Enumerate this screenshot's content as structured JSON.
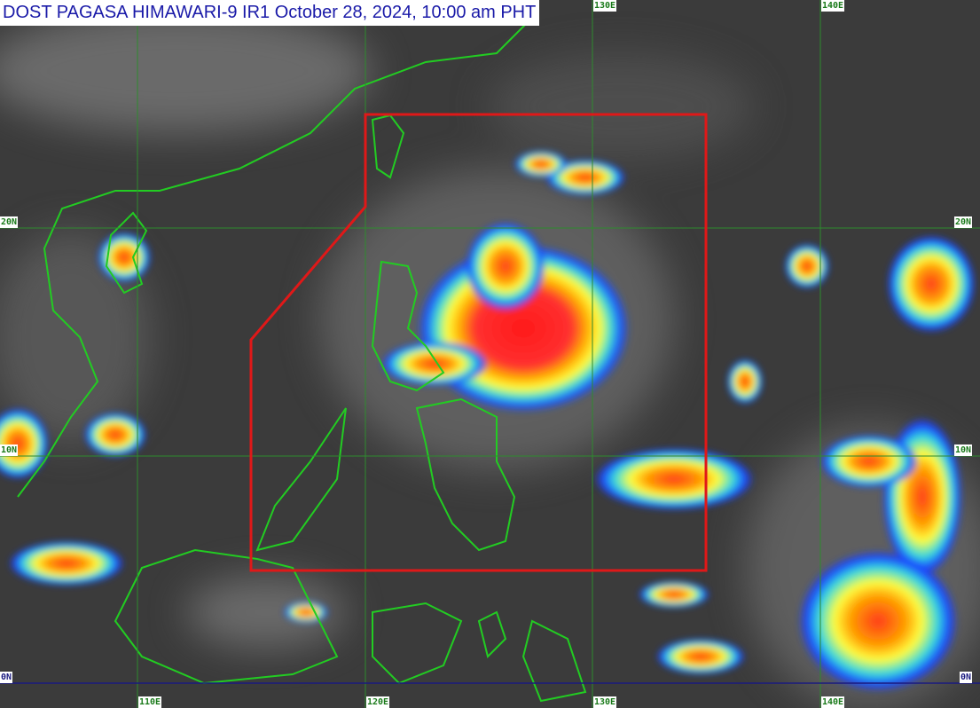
{
  "title": "DOST PAGASA HIMAWARI-9 IR1 October 28, 2024, 10:00 am PHT",
  "longitude_labels": [
    "110E",
    "120E",
    "130E",
    "140E"
  ],
  "latitude_labels": [
    "20N",
    "10N",
    "0N"
  ],
  "colors": {
    "background_cloud_gray": "#3a3a3a",
    "grid_line": "#2e8b2e",
    "equator_line": "#1a1a80",
    "coastline": "#22cc22",
    "par_boundary": "#e01818",
    "title_text": "#1a1aa8"
  }
}
